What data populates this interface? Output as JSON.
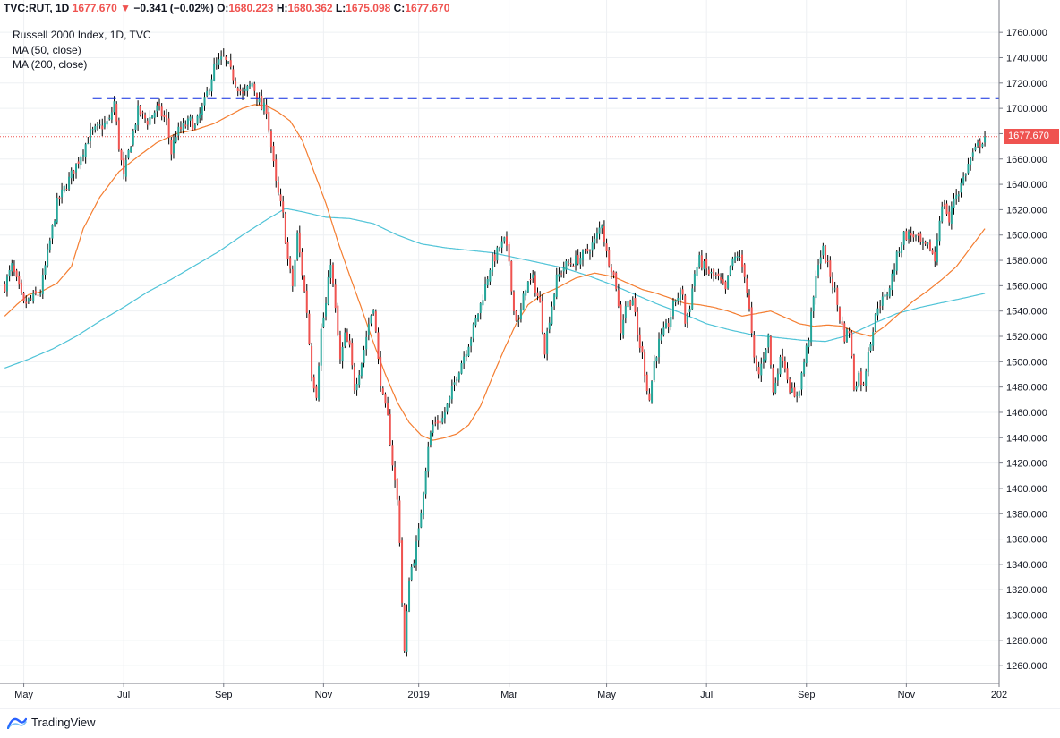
{
  "header": {
    "symbol": "TVC:RUT",
    "interval": "1D",
    "last": "1677.670",
    "arrow": "▼",
    "change": "−0.341 (−0.02%)",
    "o_label": "O:",
    "o_value": "1680.223",
    "h_label": "H:",
    "h_value": "1680.362",
    "l_label": "L:",
    "l_value": "1675.098",
    "c_label": "C:",
    "c_value": "1677.670"
  },
  "legend": {
    "title": "Russell 2000 Index, 1D, TVC",
    "ma50": "MA (50, close)",
    "ma200": "MA (200, close)"
  },
  "price_tag": "1677.670",
  "footer": {
    "brand": "TradingView"
  },
  "colors": {
    "up": "#26a69a",
    "down": "#ef5350",
    "ma50": "#f47d30",
    "ma200": "#4fc3d7",
    "resistance": "#0d2ae0",
    "last_price_line": "#ef5350",
    "grid": "#eef0f3"
  },
  "chart_data": {
    "type": "candlestick",
    "title": "Russell 2000 Index, 1D, TVC",
    "ylim": [
      1246,
      1770
    ],
    "y_ticks": [
      1260,
      1280,
      1300,
      1320,
      1340,
      1360,
      1380,
      1400,
      1420,
      1440,
      1460,
      1480,
      1500,
      1520,
      1540,
      1560,
      1580,
      1600,
      1620,
      1640,
      1660,
      1680,
      1700,
      1720,
      1740,
      1760
    ],
    "y_tick_labels": [
      "1260.000",
      "1280.000",
      "1300.000",
      "1320.000",
      "1340.000",
      "1360.000",
      "1380.000",
      "1400.000",
      "1420.000",
      "1440.000",
      "1460.000",
      "1480.000",
      "1500.000",
      "1520.000",
      "1540.000",
      "1560.000",
      "1580.000",
      "1600.000",
      "1620.000",
      "1640.000",
      "1660.000",
      "1680.000",
      "1700.000",
      "1720.000",
      "1740.000",
      "1760.000"
    ],
    "x_ticks": [
      {
        "label": "May",
        "t": 8
      },
      {
        "label": "Jul",
        "t": 50
      },
      {
        "label": "Sep",
        "t": 92
      },
      {
        "label": "Nov",
        "t": 134
      },
      {
        "label": "2019",
        "t": 174
      },
      {
        "label": "Mar",
        "t": 212
      },
      {
        "label": "May",
        "t": 253
      },
      {
        "label": "Jul",
        "t": 295
      },
      {
        "label": "Sep",
        "t": 337
      },
      {
        "label": "Nov",
        "t": 379
      },
      {
        "label": "202",
        "t": 418
      }
    ],
    "x_range": [
      -2,
      418
    ],
    "close_anchors": [
      [
        0,
        1560
      ],
      [
        3,
        1575
      ],
      [
        8,
        1545
      ],
      [
        15,
        1555
      ],
      [
        22,
        1625
      ],
      [
        30,
        1655
      ],
      [
        36,
        1680
      ],
      [
        44,
        1690
      ],
      [
        46,
        1705
      ],
      [
        48,
        1670
      ],
      [
        50,
        1645
      ],
      [
        52,
        1665
      ],
      [
        56,
        1698
      ],
      [
        60,
        1690
      ],
      [
        64,
        1700
      ],
      [
        68,
        1690
      ],
      [
        70,
        1665
      ],
      [
        72,
        1680
      ],
      [
        78,
        1690
      ],
      [
        80,
        1685
      ],
      [
        84,
        1705
      ],
      [
        88,
        1732
      ],
      [
        92,
        1740
      ],
      [
        96,
        1725
      ],
      [
        100,
        1710
      ],
      [
        104,
        1720
      ],
      [
        108,
        1700
      ],
      [
        110,
        1700
      ],
      [
        112,
        1670
      ],
      [
        114,
        1640
      ],
      [
        117,
        1615
      ],
      [
        119,
        1580
      ],
      [
        121,
        1560
      ],
      [
        123,
        1600
      ],
      [
        125,
        1570
      ],
      [
        127,
        1540
      ],
      [
        129,
        1490
      ],
      [
        131,
        1475
      ],
      [
        133,
        1525
      ],
      [
        135,
        1545
      ],
      [
        137,
        1580
      ],
      [
        139,
        1540
      ],
      [
        141,
        1500
      ],
      [
        143,
        1520
      ],
      [
        145,
        1510
      ],
      [
        147,
        1480
      ],
      [
        150,
        1500
      ],
      [
        153,
        1530
      ],
      [
        155,
        1545
      ],
      [
        157,
        1500
      ],
      [
        159,
        1470
      ],
      [
        161,
        1455
      ],
      [
        163,
        1420
      ],
      [
        165,
        1390
      ],
      [
        166,
        1360
      ],
      [
        167,
        1310
      ],
      [
        168,
        1270
      ],
      [
        169,
        1300
      ],
      [
        170,
        1330
      ],
      [
        172,
        1345
      ],
      [
        174,
        1365
      ],
      [
        176,
        1400
      ],
      [
        178,
        1435
      ],
      [
        180,
        1450
      ],
      [
        184,
        1455
      ],
      [
        187,
        1470
      ],
      [
        190,
        1490
      ],
      [
        193,
        1505
      ],
      [
        196,
        1520
      ],
      [
        200,
        1545
      ],
      [
        204,
        1575
      ],
      [
        208,
        1590
      ],
      [
        210,
        1595
      ],
      [
        212,
        1580
      ],
      [
        214,
        1540
      ],
      [
        216,
        1530
      ],
      [
        219,
        1560
      ],
      [
        222,
        1565
      ],
      [
        225,
        1545
      ],
      [
        227,
        1510
      ],
      [
        229,
        1535
      ],
      [
        232,
        1565
      ],
      [
        235,
        1575
      ],
      [
        240,
        1580
      ],
      [
        244,
        1585
      ],
      [
        248,
        1595
      ],
      [
        251,
        1610
      ],
      [
        253,
        1585
      ],
      [
        255,
        1575
      ],
      [
        257,
        1560
      ],
      [
        259,
        1525
      ],
      [
        261,
        1545
      ],
      [
        264,
        1550
      ],
      [
        266,
        1520
      ],
      [
        268,
        1505
      ],
      [
        270,
        1480
      ],
      [
        271,
        1470
      ],
      [
        273,
        1500
      ],
      [
        275,
        1515
      ],
      [
        279,
        1530
      ],
      [
        282,
        1550
      ],
      [
        285,
        1555
      ],
      [
        286,
        1530
      ],
      [
        288,
        1545
      ],
      [
        290,
        1570
      ],
      [
        292,
        1580
      ],
      [
        296,
        1570
      ],
      [
        300,
        1565
      ],
      [
        303,
        1555
      ],
      [
        305,
        1575
      ],
      [
        308,
        1585
      ],
      [
        311,
        1570
      ],
      [
        313,
        1540
      ],
      [
        315,
        1500
      ],
      [
        317,
        1490
      ],
      [
        319,
        1505
      ],
      [
        321,
        1520
      ],
      [
        323,
        1475
      ],
      [
        325,
        1495
      ],
      [
        327,
        1505
      ],
      [
        330,
        1480
      ],
      [
        332,
        1470
      ],
      [
        334,
        1480
      ],
      [
        336,
        1500
      ],
      [
        338,
        1520
      ],
      [
        340,
        1550
      ],
      [
        342,
        1580
      ],
      [
        344,
        1588
      ],
      [
        346,
        1575
      ],
      [
        349,
        1555
      ],
      [
        351,
        1535
      ],
      [
        353,
        1520
      ],
      [
        355,
        1525
      ],
      [
        357,
        1480
      ],
      [
        359,
        1490
      ],
      [
        361,
        1480
      ],
      [
        363,
        1510
      ],
      [
        365,
        1525
      ],
      [
        367,
        1545
      ],
      [
        370,
        1550
      ],
      [
        372,
        1560
      ],
      [
        374,
        1575
      ],
      [
        376,
        1590
      ],
      [
        378,
        1600
      ],
      [
        382,
        1600
      ],
      [
        386,
        1590
      ],
      [
        389,
        1590
      ],
      [
        391,
        1580
      ],
      [
        393,
        1615
      ],
      [
        395,
        1625
      ],
      [
        397,
        1610
      ],
      [
        399,
        1630
      ],
      [
        401,
        1635
      ],
      [
        403,
        1645
      ],
      [
        406,
        1660
      ],
      [
        409,
        1670
      ],
      [
        412,
        1677.67
      ]
    ],
    "resistance_level": 1708,
    "resistance_x_range": [
      37,
      418
    ],
    "last_price": 1677.67,
    "series": [
      {
        "name": "MA (50, close)",
        "anchors": [
          [
            0,
            1536
          ],
          [
            5,
            1545
          ],
          [
            10,
            1553
          ],
          [
            15,
            1555
          ],
          [
            22,
            1562
          ],
          [
            28,
            1575
          ],
          [
            33,
            1605
          ],
          [
            40,
            1630
          ],
          [
            48,
            1650
          ],
          [
            56,
            1662
          ],
          [
            64,
            1673
          ],
          [
            72,
            1680
          ],
          [
            80,
            1683
          ],
          [
            88,
            1688
          ],
          [
            95,
            1695
          ],
          [
            100,
            1700
          ],
          [
            105,
            1703
          ],
          [
            110,
            1702
          ],
          [
            115,
            1697
          ],
          [
            120,
            1690
          ],
          [
            125,
            1675
          ],
          [
            130,
            1650
          ],
          [
            135,
            1625
          ],
          [
            140,
            1595
          ],
          [
            145,
            1568
          ],
          [
            150,
            1542
          ],
          [
            155,
            1515
          ],
          [
            160,
            1490
          ],
          [
            165,
            1468
          ],
          [
            170,
            1452
          ],
          [
            175,
            1442
          ],
          [
            180,
            1438
          ],
          [
            185,
            1440
          ],
          [
            190,
            1443
          ],
          [
            195,
            1450
          ],
          [
            200,
            1465
          ],
          [
            205,
            1488
          ],
          [
            210,
            1510
          ],
          [
            215,
            1530
          ],
          [
            220,
            1545
          ],
          [
            226,
            1553
          ],
          [
            232,
            1558
          ],
          [
            240,
            1566
          ],
          [
            248,
            1570
          ],
          [
            256,
            1567
          ],
          [
            262,
            1562
          ],
          [
            268,
            1557
          ],
          [
            274,
            1554
          ],
          [
            280,
            1550
          ],
          [
            286,
            1546
          ],
          [
            292,
            1545
          ],
          [
            298,
            1543
          ],
          [
            304,
            1540
          ],
          [
            310,
            1536
          ],
          [
            316,
            1538
          ],
          [
            322,
            1540
          ],
          [
            328,
            1535
          ],
          [
            334,
            1530
          ],
          [
            340,
            1528
          ],
          [
            346,
            1529
          ],
          [
            352,
            1528
          ],
          [
            358,
            1523
          ],
          [
            364,
            1520
          ],
          [
            370,
            1528
          ],
          [
            376,
            1538
          ],
          [
            382,
            1548
          ],
          [
            388,
            1556
          ],
          [
            394,
            1565
          ],
          [
            400,
            1575
          ],
          [
            406,
            1590
          ],
          [
            412,
            1605
          ]
        ]
      },
      {
        "name": "MA (200, close)",
        "anchors": [
          [
            0,
            1495
          ],
          [
            10,
            1502
          ],
          [
            20,
            1510
          ],
          [
            30,
            1520
          ],
          [
            40,
            1532
          ],
          [
            50,
            1543
          ],
          [
            60,
            1555
          ],
          [
            70,
            1565
          ],
          [
            80,
            1576
          ],
          [
            90,
            1587
          ],
          [
            100,
            1600
          ],
          [
            110,
            1612
          ],
          [
            118,
            1621
          ],
          [
            126,
            1618
          ],
          [
            135,
            1614
          ],
          [
            145,
            1613
          ],
          [
            155,
            1609
          ],
          [
            165,
            1600
          ],
          [
            175,
            1593
          ],
          [
            185,
            1590
          ],
          [
            195,
            1588
          ],
          [
            205,
            1586
          ],
          [
            215,
            1582
          ],
          [
            225,
            1578
          ],
          [
            235,
            1574
          ],
          [
            245,
            1568
          ],
          [
            255,
            1561
          ],
          [
            265,
            1553
          ],
          [
            275,
            1545
          ],
          [
            285,
            1538
          ],
          [
            295,
            1530
          ],
          [
            305,
            1525
          ],
          [
            315,
            1521
          ],
          [
            325,
            1519
          ],
          [
            335,
            1517
          ],
          [
            345,
            1516
          ],
          [
            355,
            1521
          ],
          [
            365,
            1530
          ],
          [
            375,
            1538
          ],
          [
            385,
            1543
          ],
          [
            395,
            1547
          ],
          [
            405,
            1551
          ],
          [
            412,
            1554
          ]
        ]
      }
    ]
  }
}
